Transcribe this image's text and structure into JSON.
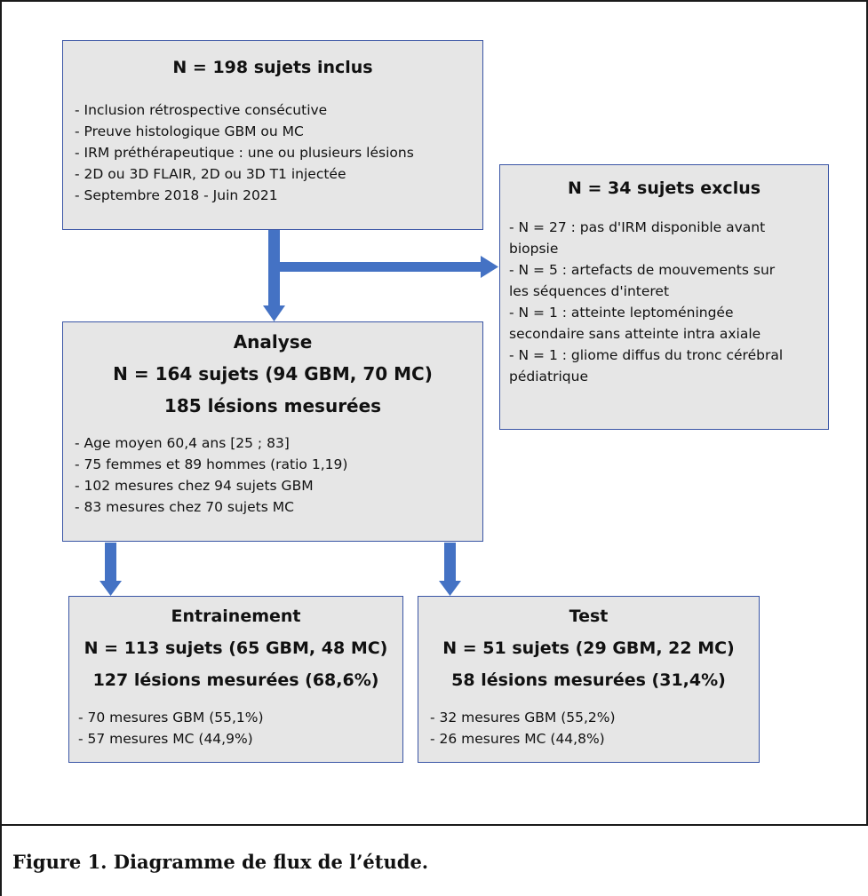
{
  "included": {
    "title": "N = 198 sujets inclus",
    "items": [
      "- Inclusion rétrospective consécutive",
      "- Preuve histologique GBM ou MC",
      "- IRM préthérapeutique : une ou plusieurs lésions",
      "- 2D ou 3D FLAIR, 2D ou 3D T1 injectée",
      "- Septembre 2018 - Juin 2021"
    ]
  },
  "excluded": {
    "title": "N = 34 sujets exclus",
    "items": [
      "- N = 27 : pas d'IRM disponible avant",
      "biopsie",
      "- N = 5 : artefacts de mouvements sur",
      "les séquences d'interet",
      "- N = 1 : atteinte leptoméningée",
      "secondaire sans atteinte intra axiale",
      "- N = 1 : gliome diffus du tronc cérébral",
      "pédiatrique"
    ]
  },
  "analysis": {
    "title": "Analyse",
    "line2": "N = 164 sujets (94 GBM, 70 MC)",
    "line3": "185 lésions mesurées",
    "items": [
      "- Age moyen 60,4 ans [25 ; 83]",
      "- 75 femmes et 89 hommes (ratio 1,19)",
      "- 102 mesures  chez 94 sujets GBM",
      "- 83 mesures chez 70 sujets MC"
    ]
  },
  "training": {
    "title": "Entrainement",
    "line2": "N = 113 sujets (65 GBM, 48 MC)",
    "line3": "127 lésions mesurées (68,6%)",
    "items": [
      "- 70 mesures GBM (55,1%)",
      "- 57 mesures MC (44,9%)"
    ]
  },
  "test": {
    "title": "Test",
    "line2": "N = 51 sujets (29 GBM, 22 MC)",
    "line3": "58 lésions mesurées (31,4%)",
    "items": [
      "- 32 mesures GBM (55,2%)",
      "- 26 mesures MC (44,8%)"
    ]
  },
  "caption": "Figure 1. Diagramme de flux de l’étude.",
  "colors": {
    "arrow": "#4472c4",
    "box_fill": "#e6e6e6",
    "box_border": "#3a55a5"
  }
}
